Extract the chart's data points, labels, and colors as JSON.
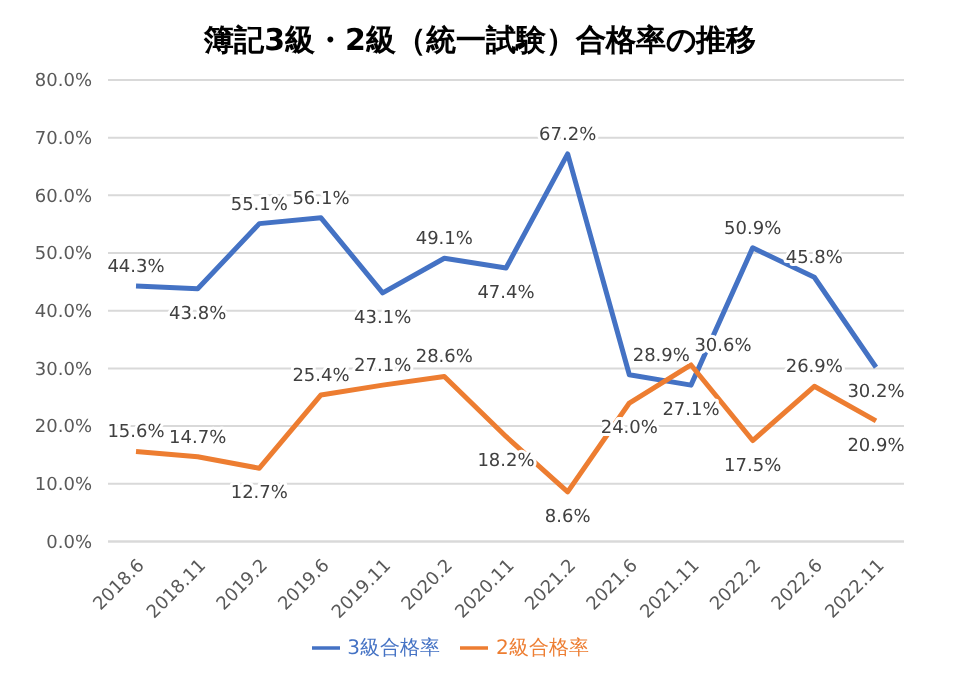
{
  "chart_data": {
    "type": "line",
    "title": "簿記3級・2級（統一試験）合格率の推移",
    "categories": [
      "2018.6",
      "2018.11",
      "2019.2",
      "2019.6",
      "2019.11",
      "2020.2",
      "2020.11",
      "2021.2",
      "2021.6",
      "2021.11",
      "2022.2",
      "2022.6",
      "2022.11"
    ],
    "series": [
      {
        "name": "3級合格率",
        "color": "#4472c4",
        "values": [
          44.3,
          43.8,
          55.1,
          56.1,
          43.1,
          49.1,
          47.4,
          67.2,
          28.9,
          27.1,
          50.9,
          45.8,
          30.2
        ],
        "value_labels": [
          "44.3%",
          "43.8%",
          "55.1%",
          "56.1%",
          "43.1%",
          "49.1%",
          "47.4%",
          "67.2%",
          "28.9%",
          "27.1%",
          "50.9%",
          "45.8%",
          "30.2%"
        ]
      },
      {
        "name": "2級合格率",
        "color": "#ed7d31",
        "values": [
          15.6,
          14.7,
          12.7,
          25.4,
          27.1,
          28.6,
          18.2,
          8.6,
          24.0,
          30.6,
          17.5,
          26.9,
          20.9
        ],
        "value_labels": [
          "15.6%",
          "14.7%",
          "12.7%",
          "25.4%",
          "27.1%",
          "28.6%",
          "18.2%",
          "8.6%",
          "24.0%",
          "30.6%",
          "17.5%",
          "26.9%",
          "20.9%"
        ]
      }
    ],
    "ylim": [
      0,
      80
    ],
    "yticks": [
      {
        "value": 0,
        "label": "0.0%"
      },
      {
        "value": 10,
        "label": "10.0%"
      },
      {
        "value": 20,
        "label": "20.0%"
      },
      {
        "value": 30,
        "label": "30.0%"
      },
      {
        "value": 40,
        "label": "40.0%"
      },
      {
        "value": 50,
        "label": "50.0%"
      },
      {
        "value": 60,
        "label": "60.0%"
      },
      {
        "value": 70,
        "label": "70.0%"
      },
      {
        "value": 80,
        "label": "80.0%"
      }
    ],
    "grid": "y",
    "legend": "bottom",
    "marker": "none",
    "line_style": "solid"
  }
}
